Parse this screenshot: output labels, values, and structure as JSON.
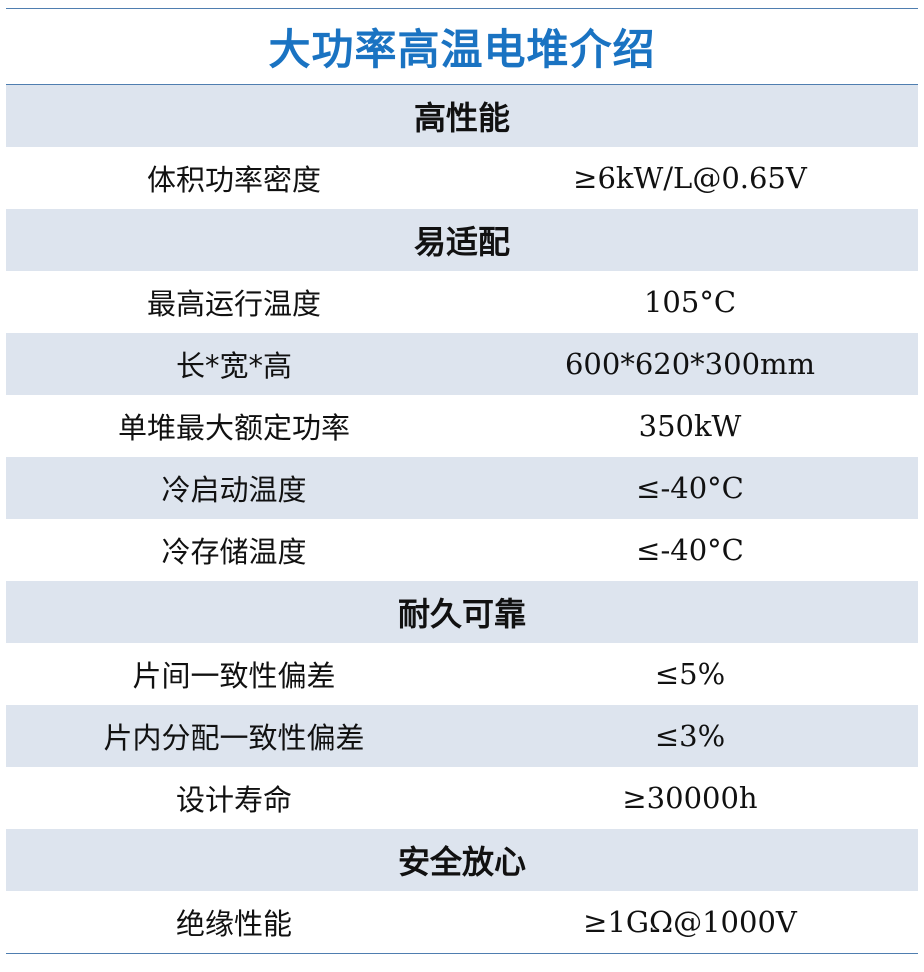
{
  "title": "大功率高温电堆介绍",
  "sections": {
    "performance": {
      "heading": "高性能",
      "rows": [
        {
          "label": "体积功率密度",
          "value": "≥6kW/L@0.65V"
        }
      ]
    },
    "adaptability": {
      "heading": "易适配",
      "rows": [
        {
          "label": "最高运行温度",
          "value": "105°C"
        },
        {
          "label": "长*宽*高",
          "value": "600*620*300mm"
        },
        {
          "label": "单堆最大额定功率",
          "value": "350kW"
        },
        {
          "label": "冷启动温度",
          "value": "≤-40°C"
        },
        {
          "label": "冷存储温度",
          "value": "≤-40°C"
        }
      ]
    },
    "durability": {
      "heading": "耐久可靠",
      "rows": [
        {
          "label": "片间一致性偏差",
          "value": "≤5%"
        },
        {
          "label": "片内分配一致性偏差",
          "value": "≤3%"
        },
        {
          "label": "设计寿命",
          "value": "≥30000h"
        }
      ]
    },
    "safety": {
      "heading": "安全放心",
      "rows": [
        {
          "label": "绝缘性能",
          "value": "≥1GΩ@1000V"
        }
      ]
    }
  },
  "colors": {
    "title": "#1a73c2",
    "shade": "#dde4ee",
    "rule": "#4f7eb0"
  }
}
